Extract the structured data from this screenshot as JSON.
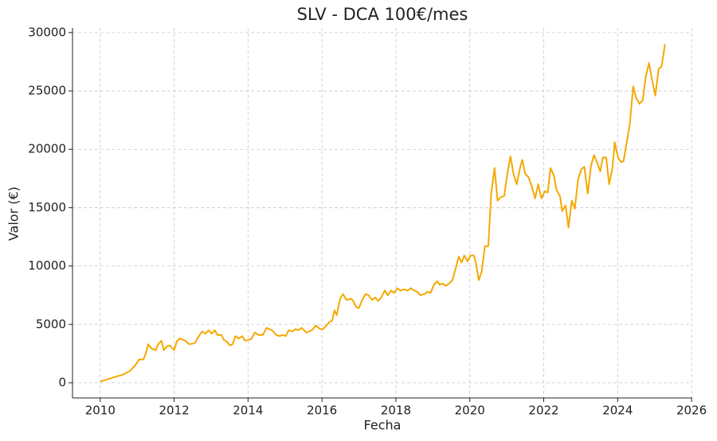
{
  "chart_data": {
    "type": "line",
    "title": "SLV - DCA 100€/mes",
    "xlabel": "Fecha",
    "ylabel": "Valor (€)",
    "x": [
      2010.0,
      2010.4,
      2010.62,
      2010.8,
      2010.95,
      2011.05,
      2011.17,
      2011.23,
      2011.3,
      2011.4,
      2011.5,
      2011.57,
      2011.66,
      2011.72,
      2011.8,
      2011.88,
      2012.0,
      2012.07,
      2012.15,
      2012.3,
      2012.41,
      2012.56,
      2012.67,
      2012.76,
      2012.85,
      2012.93,
      2013.02,
      2013.1,
      2013.17,
      2013.28,
      2013.34,
      2013.43,
      2013.51,
      2013.58,
      2013.66,
      2013.75,
      2013.84,
      2013.92,
      2014.03,
      2014.1,
      2014.18,
      2014.29,
      2014.4,
      2014.5,
      2014.65,
      2014.76,
      2014.85,
      2014.94,
      2015.02,
      2015.1,
      2015.2,
      2015.28,
      2015.36,
      2015.45,
      2015.58,
      2015.73,
      2015.84,
      2015.95,
      2016.03,
      2016.12,
      2016.2,
      2016.27,
      2016.34,
      2016.4,
      2016.49,
      2016.57,
      2016.66,
      2016.79,
      2016.85,
      2016.92,
      2017.0,
      2017.09,
      2017.18,
      2017.26,
      2017.35,
      2017.44,
      2017.52,
      2017.6,
      2017.7,
      2017.78,
      2017.87,
      2017.95,
      2018.04,
      2018.12,
      2018.23,
      2018.32,
      2018.4,
      2018.5,
      2018.58,
      2018.66,
      2018.77,
      2018.86,
      2018.94,
      2019.03,
      2019.12,
      2019.18,
      2019.27,
      2019.35,
      2019.44,
      2019.53,
      2019.61,
      2019.7,
      2019.78,
      2019.85,
      2019.94,
      2020.02,
      2020.11,
      2020.17,
      2020.24,
      2020.32,
      2020.41,
      2020.5,
      2020.58,
      2020.67,
      2020.75,
      2020.84,
      2020.93,
      2021.01,
      2021.1,
      2021.19,
      2021.27,
      2021.36,
      2021.42,
      2021.5,
      2021.59,
      2021.68,
      2021.77,
      2021.85,
      2021.94,
      2022.03,
      2022.11,
      2022.18,
      2022.27,
      2022.35,
      2022.44,
      2022.5,
      2022.59,
      2022.67,
      2022.76,
      2022.84,
      2022.93,
      2023.02,
      2023.1,
      2023.19,
      2023.28,
      2023.36,
      2023.45,
      2023.53,
      2023.6,
      2023.69,
      2023.77,
      2023.86,
      2023.92,
      2024.01,
      2024.09,
      2024.16,
      2024.25,
      2024.33,
      2024.42,
      2024.5,
      2024.59,
      2024.68,
      2024.76,
      2024.85,
      2024.94,
      2025.02,
      2025.11,
      2025.19,
      2025.28
    ],
    "series": [
      {
        "name": "SLV",
        "color": "#f5a800",
        "values": [
          100,
          500,
          700,
          1000,
          1500,
          2000,
          2000,
          2500,
          3300,
          2900,
          2800,
          3300,
          3600,
          2800,
          3100,
          3200,
          2800,
          3500,
          3800,
          3600,
          3300,
          3400,
          4000,
          4400,
          4200,
          4500,
          4200,
          4500,
          4100,
          4100,
          3700,
          3500,
          3200,
          3300,
          4000,
          3800,
          4000,
          3600,
          3700,
          3800,
          4300,
          4100,
          4100,
          4700,
          4500,
          4100,
          4000,
          4100,
          4000,
          4500,
          4400,
          4600,
          4500,
          4700,
          4300,
          4500,
          4900,
          4600,
          4600,
          4900,
          5200,
          5300,
          6200,
          5800,
          7200,
          7600,
          7100,
          7200,
          7000,
          6500,
          6400,
          7100,
          7600,
          7500,
          7100,
          7300,
          7000,
          7300,
          7900,
          7500,
          7900,
          7700,
          8100,
          7900,
          8000,
          7900,
          8100,
          7900,
          7800,
          7500,
          7600,
          7800,
          7700,
          8400,
          8700,
          8400,
          8500,
          8300,
          8500,
          8800,
          9700,
          10800,
          10300,
          10900,
          10400,
          10900,
          10900,
          10200,
          8800,
          9500,
          11700,
          11700,
          16200,
          18400,
          15600,
          15900,
          16000,
          17800,
          19400,
          17800,
          17000,
          18400,
          19100,
          17900,
          17600,
          16800,
          15800,
          17000,
          15800,
          16400,
          16300,
          18400,
          17800,
          16500,
          16000,
          14700,
          15200,
          13300,
          15600,
          14900,
          17400,
          18300,
          18500,
          16200,
          18600,
          19500,
          18800,
          18100,
          19300,
          19300,
          17000,
          18400,
          20600,
          19300,
          18900,
          19000,
          20700,
          22200,
          25400,
          24400,
          23900,
          24200,
          26200,
          27400,
          25800,
          24600,
          26900,
          27100,
          29000
        ]
      }
    ],
    "xlim": [
      2009.25,
      2026.02
    ],
    "ylim": [
      -1300,
      30400
    ],
    "xticks": [
      2010,
      2012,
      2014,
      2016,
      2018,
      2020,
      2022,
      2024,
      2026
    ],
    "yticks": [
      0,
      5000,
      10000,
      15000,
      20000,
      25000,
      30000
    ],
    "grid": true
  }
}
